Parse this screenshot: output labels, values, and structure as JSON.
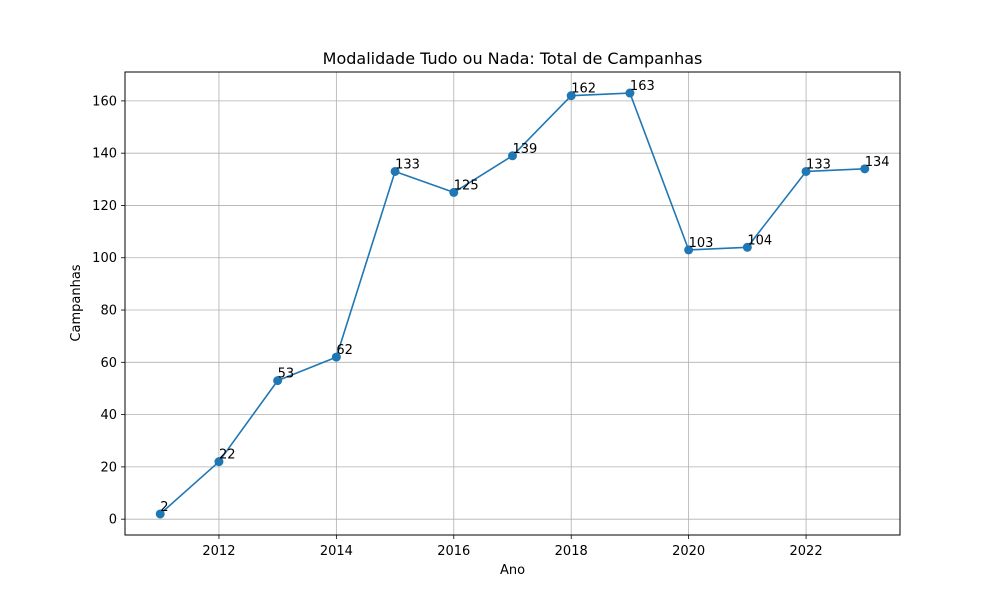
{
  "chart_data": {
    "type": "line",
    "title": "Modalidade Tudo ou Nada: Total de Campanhas",
    "xlabel": "Ano",
    "ylabel": "Campanhas",
    "x": [
      2011,
      2012,
      2013,
      2014,
      2015,
      2016,
      2017,
      2018,
      2019,
      2020,
      2021,
      2022,
      2023
    ],
    "series": [
      {
        "values": [
          2,
          22,
          53,
          62,
          133,
          125,
          139,
          162,
          163,
          103,
          104,
          133,
          134
        ],
        "color": "#1f77b4"
      }
    ],
    "data_labels": [
      "2",
      "22",
      "53",
      "62",
      "133",
      "125",
      "139",
      "162",
      "163",
      "103",
      "104",
      "133",
      "134"
    ],
    "xlim": [
      2010.4,
      2023.6
    ],
    "ylim": [
      -6.05,
      171.05
    ],
    "xticks": [
      2012,
      2014,
      2016,
      2018,
      2020,
      2022
    ],
    "xtick_labels": [
      "2012",
      "2014",
      "2016",
      "2018",
      "2020",
      "2022"
    ],
    "yticks": [
      0,
      20,
      40,
      60,
      80,
      100,
      120,
      140,
      160
    ],
    "ytick_labels": [
      "0",
      "20",
      "40",
      "60",
      "80",
      "100",
      "120",
      "140",
      "160"
    ],
    "grid": true,
    "marker": "circle"
  }
}
